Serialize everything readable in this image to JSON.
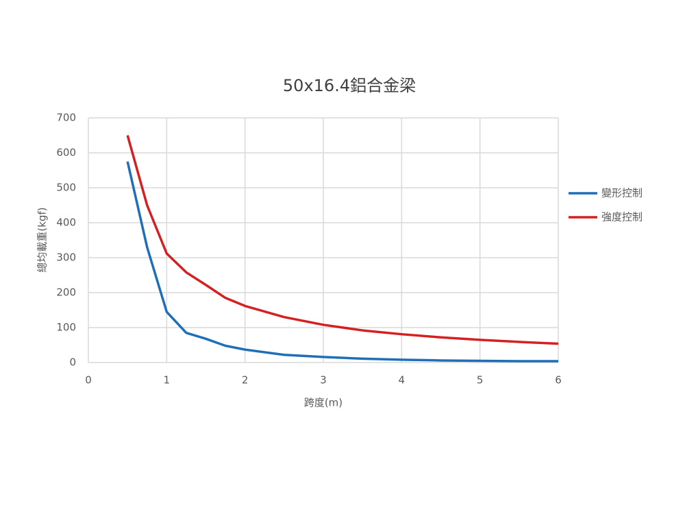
{
  "chart_data": {
    "type": "line",
    "title": "50x16.4鋁合金梁",
    "x_label": "跨度(m)",
    "y_label": "總均載重(kgf)",
    "x": [
      0.5,
      0.75,
      1,
      1.25,
      1.5,
      1.75,
      2,
      2.5,
      3,
      3.5,
      4,
      4.5,
      5,
      5.5,
      6
    ],
    "series": [
      {
        "name": "變形控制",
        "color": "#1f6fb8",
        "values": [
          575,
          330,
          145,
          85,
          68,
          48,
          37,
          22,
          16,
          11,
          8,
          6,
          5,
          4,
          4
        ]
      },
      {
        "name": "強度控制",
        "color": "#d42020",
        "values": [
          650,
          450,
          312,
          258,
          222,
          185,
          162,
          130,
          108,
          92,
          81,
          72,
          65,
          59,
          54
        ]
      }
    ],
    "xlim": [
      0,
      6
    ],
    "xticks": [
      0,
      1,
      2,
      3,
      4,
      5,
      6
    ],
    "ylim": [
      0,
      700
    ],
    "yticks": [
      0,
      100,
      200,
      300,
      400,
      500,
      600,
      700
    ],
    "grid": true,
    "legend": "right"
  }
}
